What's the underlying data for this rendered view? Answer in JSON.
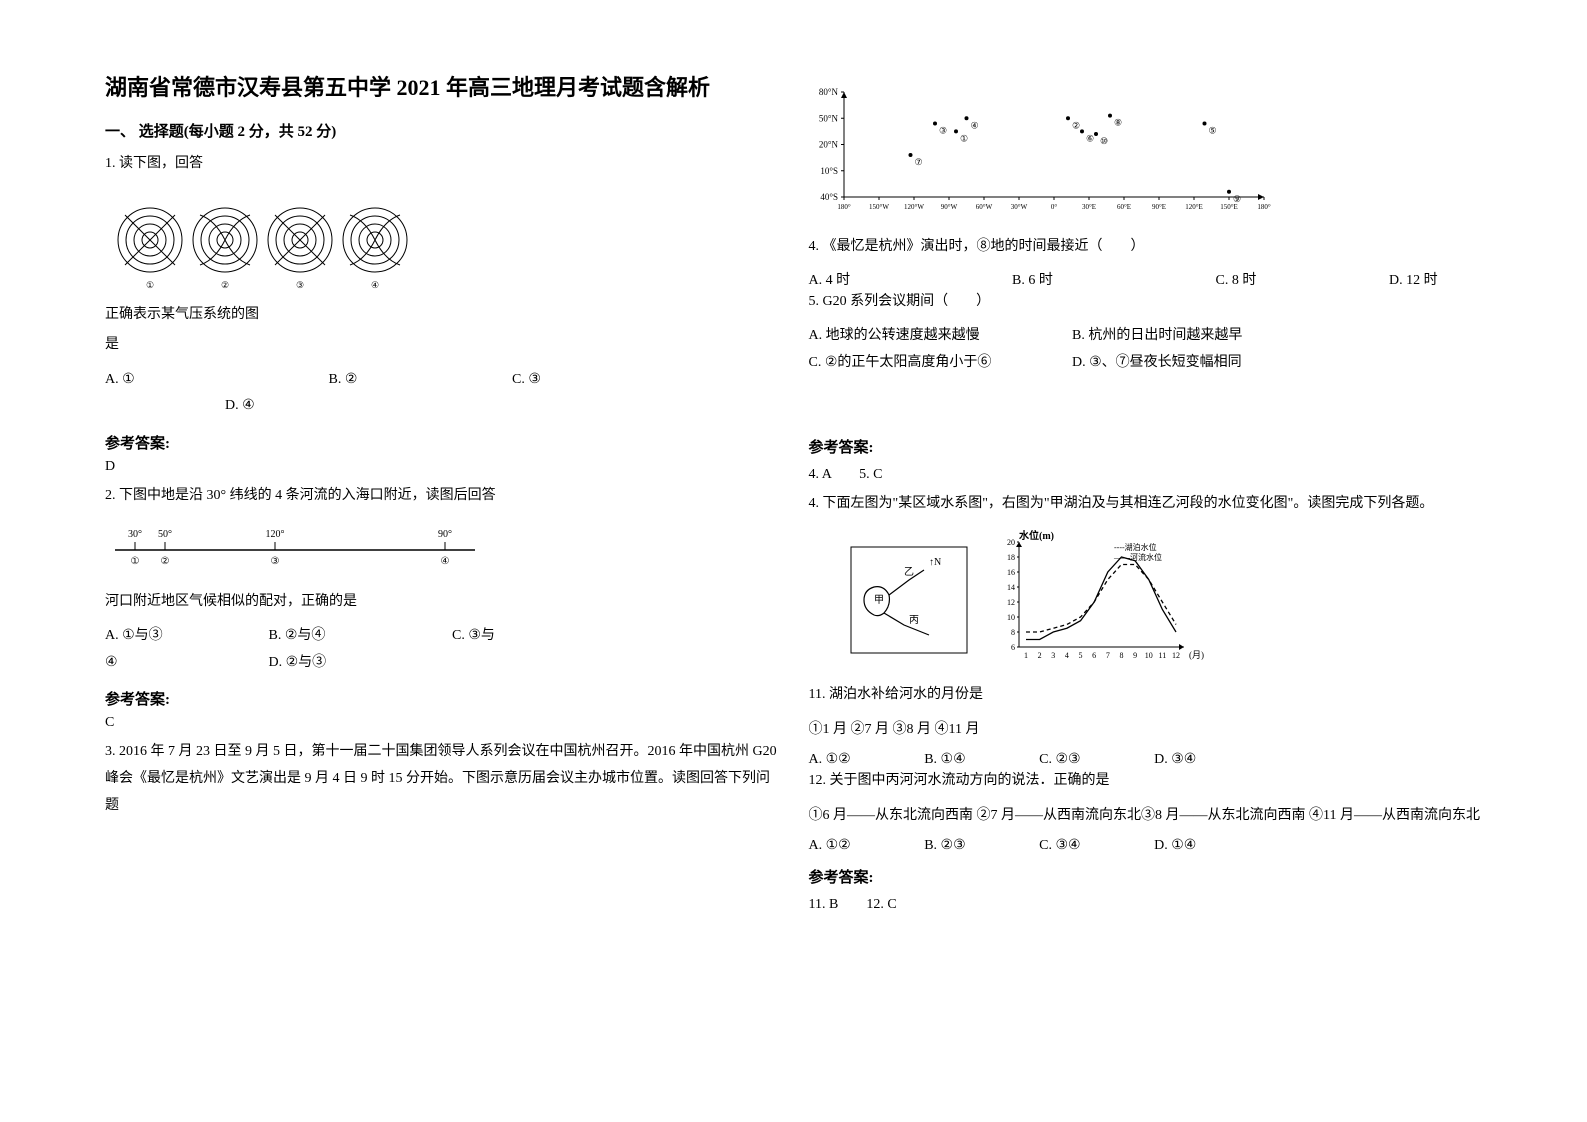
{
  "title": "湖南省常德市汉寿县第五中学 2021 年高三地理月考试题含解析",
  "section1": "一、 选择题(每小题 2 分，共 52 分)",
  "q1": {
    "num": "1. 读下图，回答",
    "stem": "正确表示某气压系统的图",
    "stem2": "是",
    "optA": "A.  ①",
    "optB": "B.  ②",
    "optC": "C.  ③",
    "optD": "D.  ④"
  },
  "refLabel": "参考答案:",
  "q1ans": "D",
  "q2": {
    "num": "2. 下图中地是沿 30° 纬线的 4 条河流的入海口附近，读图后回答",
    "stem": "河口附近地区气候相似的配对，正确的是",
    "optA": "A.  ①与③",
    "optB": "B.  ②与④",
    "optC": "C.  ③与",
    "optC2": "④",
    "optD": "D.  ②与③"
  },
  "q2ans": "C",
  "q3": {
    "text": "3. 2016 年 7 月 23 日至 9 月 5 日，第十一届二十国集团领导人系列会议在中国杭州召开。2016 年中国杭州 G20 峰会《最忆是杭州》文艺演出是 9 月 4 日 9 时 15 分开始。下图示意历届会议主办城市位置。读图回答下列问题"
  },
  "chart3": {
    "yticks": [
      "80°N",
      "50°N",
      "20°N",
      "10°S",
      "40°S"
    ],
    "xticks": [
      "180°",
      "150°W",
      "120°W",
      "90°W",
      "60°W",
      "30°W",
      "0°",
      "30°E",
      "60°E",
      "90°E",
      "120°E",
      "150°E",
      "180°"
    ],
    "points": [
      {
        "id": "①",
        "x": 3.2,
        "y": 1.5
      },
      {
        "id": "②",
        "x": 6.4,
        "y": 1.0
      },
      {
        "id": "③",
        "x": 2.6,
        "y": 1.2
      },
      {
        "id": "④",
        "x": 3.5,
        "y": 1.0
      },
      {
        "id": "⑤",
        "x": 10.3,
        "y": 1.2
      },
      {
        "id": "⑥",
        "x": 6.8,
        "y": 1.5
      },
      {
        "id": "⑦",
        "x": 1.9,
        "y": 2.4
      },
      {
        "id": "⑧",
        "x": 7.6,
        "y": 0.9
      },
      {
        "id": "⑨",
        "x": 11.0,
        "y": 3.8
      },
      {
        "id": "⑩",
        "x": 7.2,
        "y": 1.6
      }
    ]
  },
  "q4": {
    "num": "4. 《最忆是杭州》演出时，⑧地的时间最接近（　　）",
    "optA": "A. 4 时",
    "optB": "B. 6 时",
    "optC": "C. 8 时",
    "optD": "D. 12 时"
  },
  "q5": {
    "num": "5. G20 系列会议期间（　　）",
    "optA": "A. 地球的公转速度越来越慢",
    "optB": "B. 杭州的日出时间越来越早",
    "optC": "C. ②的正午太阳高度角小于⑥",
    "optD": "D. ③、⑦昼夜长短变幅相同"
  },
  "q45ans": "4. A　　5. C",
  "q4text": "4. 下面左图为\"某区域水系图\"，右图为\"甲湖泊及与其相连乙河段的水位变化图\"。读图完成下列各题。",
  "linechart": {
    "ylabel": "水位(m)",
    "yticks": [
      "20",
      "18",
      "16",
      "14",
      "12",
      "10",
      "8",
      "6"
    ],
    "xticks": [
      "1",
      "2",
      "3",
      "4",
      "5",
      "6",
      "7",
      "8",
      "9",
      "10",
      "11",
      "12"
    ],
    "xlabel": "(月)",
    "legend1": "----湖泊水位",
    "legend2": "——河流水位",
    "lake": [
      8,
      8,
      8.5,
      9,
      10,
      12,
      15,
      17,
      17,
      15,
      12,
      9
    ],
    "river": [
      7,
      7,
      8,
      8.5,
      9.5,
      12,
      16,
      18,
      17.5,
      15,
      11,
      8
    ]
  },
  "q11": {
    "num": "11.  湖泊水补给河水的月份是",
    "opts": "①1 月 ②7 月 ③8 月 ④11 月",
    "optA": "A.  ①②",
    "optB": "B.  ①④",
    "optC": "C.  ②③",
    "optD": "D.  ③④"
  },
  "q12": {
    "num": "12.  关于图中丙河河水流动方向的说法．正确的是",
    "opts": "①6 月——从东北流向西南  ②7 月——从西南流向东北③8 月——从东北流向西南  ④11 月——从西南流向东北",
    "optA": "A.  ①②",
    "optB": "B.  ②③",
    "optC": "C.  ③④",
    "optD": "D.  ①④"
  },
  "q1112ans": "11.  B　　12.  C"
}
